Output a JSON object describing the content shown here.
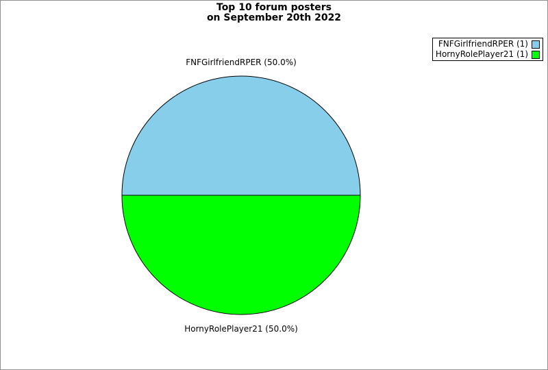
{
  "title": {
    "line1": "Top 10 forum posters",
    "line2": "on September 20th 2022"
  },
  "legend": {
    "position": "top-right",
    "items": [
      {
        "label": "FNFGirlfriendRPER (1)",
        "color": "#87CEEB"
      },
      {
        "label": "HornyRolePlayer21 (1)",
        "color": "#00FF00"
      }
    ]
  },
  "chart_data": {
    "type": "pie",
    "title": "Top 10 forum posters on September 20th 2022",
    "slices": [
      {
        "label": "FNFGirlfriendRPER",
        "value": 1,
        "percent": 50.0,
        "color": "#87CEEB",
        "callout": "FNFGirlfriendRPER (50.0%)"
      },
      {
        "label": "HornyRolePlayer21",
        "value": 1,
        "percent": 50.0,
        "color": "#00FF00",
        "callout": "HornyRolePlayer21 (50.0%)"
      }
    ],
    "legend_position": "top-right",
    "colors": {
      "slice_outline": "#000000",
      "background": "#FFFFFF",
      "page_border": "#909090"
    }
  }
}
